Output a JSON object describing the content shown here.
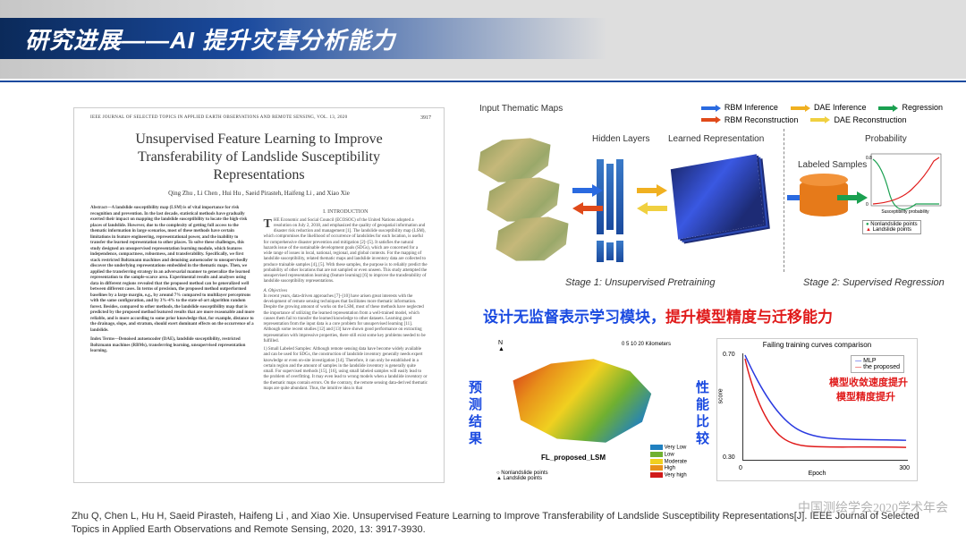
{
  "header": {
    "title": "研究进展——AI 提升灾害分析能力"
  },
  "paper": {
    "journal_header": "IEEE JOURNAL OF SELECTED TOPICS IN APPLIED EARTH OBSERVATIONS AND REMOTE SENSING, VOL. 13, 2020",
    "page_number": "3917",
    "title": "Unsupervised Feature Learning to Improve Transferability of Landslide Susceptibility Representations",
    "authors": "Qing Zhu , Li Chen , Hui Hu , Saeid Pirasteh, Haifeng Li , and Xiao Xie",
    "abstract": "Abstract—A landslide susceptibility map (LSM) is of vital importance for risk recognition and prevention. In the last decade, statistical methods have gradually exerted their impact on mapping the landslide susceptibility to locate the high-risk places of landslide. However, due to the complexity of getting full access to the thematic information in large scenarios, most of these methods have certain limitations in feature engineering, representational power, and the inability to transfer the learned representation to other places. To solve these challenges, this study designed an unsupervised representation learning module, which features independence, compactness, robustness, and transferability. Specifically, we first stack restricted Boltzmann machines and denoising autoencoder to unsupervisedly discover the underlying representations embedded in the thematic maps. Then, we applied the transferring strategy in an adversarial manner to generalize the learned representation to the sample-scarce area. Experimental results and analyses using data in different regions revealed that the proposed method can be generalized well between different cases. In terms of precision, the proposed method outperformed baselines by a large margin, e.g., by around 7% compared to multilayer perceptrons with the same configuration, and by 3%-4% to the state-of-art algorithm random forest. Besides, compared to other methods, the landslide susceptibility map that is predicted by the proposed method featured results that are more reasonable and more reliable, and is more according to some prior knowledge that, for example, distance to the drainage, slope, and stratum, should exert dominant effects on the occurrence of a landslide.",
    "index_terms": "Index Terms—Denoised autoencoder (DAE), landslide susceptibility, restricted Boltzmann machines (RBMs), transferring learning, unsupervised representation learning.",
    "section1_head": "I. INTRODUCTION",
    "intro_dropcap": "T",
    "intro_text": "HE Economic and Social Council (ECOSOC) of the United Nations adopted a resolution on July 2, 2018, and emphasized the quality of geospatial information and disaster risk reduction and management [1]. The landslide susceptibility map (LSM), which compromises the likelihood of occurrence of landslides for each location, is useful for comprehensive disaster prevention and mitigation [2]–[5]. It satisfies the natural hazards issue of the sustainable development goals (SDGs), which are concerned for a wide range of issues in local, national, regional, and global contexts. For the mapping of landslide susceptibility, related thematic maps and landslide inventory data are collected to produce trainable samples [4], [5]. With these samples, the purpose is to reliably predict the probability of other locations that are not sampled or even unseen. This study attempted the unsupervised representation learning (feature learning) [6] to improve the transferability of landslide susceptibility representations.",
    "subsec_a": "A. Objectives",
    "para_a": "In recent years, data-driven approaches [7]–[10] have arisen great interests with the development of remote sensing techniques that facilitates more thematic information. Despite the growing amount of works on the LSM, most of these methods have neglected the importance of utilizing the learned representation from a well-trained model, which causes them fail to transfer the learned knowledge to other datasets. Learning good representation from the input data is a core problem for unsupervised learning [11]. Although some recent studies [12] and [13] have shown good performance on extracting representation with impressive properties, there still exist some key problems needed to be fulfilled.",
    "subpara_1": "1) Small Labeled Samples: Although remote sensing data have become widely available and can be used for SDGs, the construction of landslide inventory generally needs expert knowledge or even on-site investigation [14]. Therefore, it can only be established in a certain region and the amount of samples in the landslide inventory is generally quite small. For supervised methods [15], [16], using small labeled samples will easily lead to the problem of overfitting. It may even lead to wrong models when a landslide inventory or the thematic maps contain errors. On the contrary, the remote sensing data-derived thematic maps are quite abundant. Thus, the intuitive idea is that"
  },
  "diagram": {
    "input_label": "Input Thematic Maps",
    "hidden_label": "Hidden Layers",
    "learned_label": "Learned Representation",
    "labeled_label": "Labeled Samples",
    "prob_label": "Probability",
    "stage1": "Stage 1: Unsupervised Pretraining",
    "stage2": "Stage 2: Supervised Regression",
    "legend": {
      "rbm_inf": "RBM Inference",
      "dae_inf": "DAE Inference",
      "regression": "Regression",
      "rbm_rec": "RBM Reconstruction",
      "dae_rec": "DAE Reconstruction"
    },
    "colors": {
      "rbm_inf": "#2a6ae0",
      "dae_inf": "#f0b020",
      "regression": "#1aa050",
      "rbm_rec": "#e04a1a",
      "dae_rec": "#f0d040"
    },
    "prob_plot": {
      "xlabel": "Susceptibility probability",
      "ylim": [
        0,
        0.8
      ],
      "legend": [
        "Nonlandslide points",
        "Landslide points"
      ]
    }
  },
  "highlight": {
    "part1": "设计无监督表示学习模块，",
    "part2": "提升模型精度与迁移能力"
  },
  "results": {
    "pred_label": "预测结果",
    "perf_label": "性能比较",
    "map": {
      "title": "FL_proposed_LSM",
      "scalebar": "0    5    10         20 Kilometers",
      "footer_a": "Nonlandslide points",
      "footer_b": "Landslide points",
      "legend": [
        {
          "label": "Very Low",
          "color": "#2080c0"
        },
        {
          "label": "Low",
          "color": "#70b030"
        },
        {
          "label": "Moderate",
          "color": "#f0d020"
        },
        {
          "label": "High",
          "color": "#e8901a"
        },
        {
          "label": "Very high",
          "color": "#d01a1a"
        }
      ]
    },
    "chart": {
      "title": "Failing training curves comparison",
      "xlabel": "Epoch",
      "ylabel": "score",
      "xlim": [
        0,
        300
      ],
      "ylim": [
        0.3,
        0.7
      ],
      "xticks": [
        0,
        50,
        100,
        150,
        200,
        250,
        300
      ],
      "yticks": [
        0.3,
        0.35,
        0.4,
        0.45,
        0.5,
        0.55,
        0.6,
        0.65,
        0.7
      ],
      "series": [
        {
          "name": "MLP",
          "color": "#2a3ae0"
        },
        {
          "name": "the proposed",
          "color": "#e01a1a"
        }
      ],
      "anno1": "模型收敛速度提升",
      "anno2": "模型精度提升"
    }
  },
  "citation": "Zhu Q, Chen L, Hu H, Saeid Pirasteh, Haifeng Li , and Xiao Xie. Unsupervised Feature Learning to Improve Transferability of Landslide Susceptibility Representations[J]. IEEE Journal of Selected Topics in Applied Earth Observations and Remote Sensing, 2020, 13: 3917-3930.",
  "watermark": "中国测绘学会2020学术年会"
}
